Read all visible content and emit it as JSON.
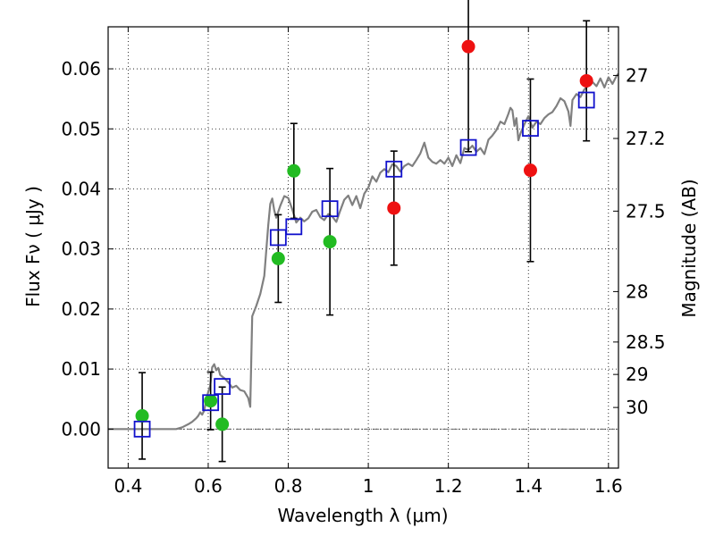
{
  "chart_data": {
    "type": "scatter",
    "xlabel": "Wavelength  λ (μm)",
    "ylabel_left": "Flux  Fν  ( μJy )",
    "ylabel_right": "Magnitude (AB)",
    "xlim": [
      0.35,
      1.625
    ],
    "ylim": [
      -0.0065,
      0.067
    ],
    "grid": true,
    "x_ticks": [
      {
        "value": 0.4,
        "label": "0.4"
      },
      {
        "value": 0.6,
        "label": "0.6"
      },
      {
        "value": 0.8,
        "label": "0.8"
      },
      {
        "value": 1.0,
        "label": "1"
      },
      {
        "value": 1.2,
        "label": "1.2"
      },
      {
        "value": 1.4,
        "label": "1.4"
      },
      {
        "value": 1.6,
        "label": "1.6"
      }
    ],
    "y_ticks": [
      {
        "value": 0.0,
        "label": "0.00"
      },
      {
        "value": 0.01,
        "label": "0.01"
      },
      {
        "value": 0.02,
        "label": "0.02"
      },
      {
        "value": 0.03,
        "label": "0.03"
      },
      {
        "value": 0.04,
        "label": "0.04"
      },
      {
        "value": 0.05,
        "label": "0.05"
      },
      {
        "value": 0.06,
        "label": "0.06"
      }
    ],
    "right_ticks": [
      {
        "label": "27",
        "flux": 0.0589
      },
      {
        "label": "27.2",
        "flux": 0.0484
      },
      {
        "label": "27.5",
        "flux": 0.0363
      },
      {
        "label": "28",
        "flux": 0.0229
      },
      {
        "label": "28.5",
        "flux": 0.0145
      },
      {
        "label": "29",
        "flux": 0.0091
      },
      {
        "label": "30",
        "flux": 0.0036
      }
    ],
    "zero_line": 0.0,
    "model_spectrum": {
      "color": "#808080",
      "points": [
        [
          0.35,
          0.0
        ],
        [
          0.52,
          0.0
        ],
        [
          0.535,
          0.0003
        ],
        [
          0.55,
          0.0008
        ],
        [
          0.56,
          0.0012
        ],
        [
          0.57,
          0.0018
        ],
        [
          0.575,
          0.0022
        ],
        [
          0.58,
          0.0028
        ],
        [
          0.585,
          0.0024
        ],
        [
          0.59,
          0.0031
        ],
        [
          0.595,
          0.0048
        ],
        [
          0.6,
          0.0062
        ],
        [
          0.605,
          0.0072
        ],
        [
          0.61,
          0.0103
        ],
        [
          0.615,
          0.0108
        ],
        [
          0.62,
          0.0098
        ],
        [
          0.625,
          0.0102
        ],
        [
          0.63,
          0.009
        ],
        [
          0.64,
          0.0085
        ],
        [
          0.65,
          0.0078
        ],
        [
          0.66,
          0.0069
        ],
        [
          0.67,
          0.0072
        ],
        [
          0.68,
          0.0065
        ],
        [
          0.69,
          0.0063
        ],
        [
          0.7,
          0.0052
        ],
        [
          0.705,
          0.0037
        ],
        [
          0.71,
          0.0188
        ],
        [
          0.72,
          0.0205
        ],
        [
          0.73,
          0.0225
        ],
        [
          0.74,
          0.0255
        ],
        [
          0.75,
          0.0339
        ],
        [
          0.755,
          0.0375
        ],
        [
          0.76,
          0.0384
        ],
        [
          0.765,
          0.0364
        ],
        [
          0.77,
          0.0352
        ],
        [
          0.78,
          0.0372
        ],
        [
          0.79,
          0.0388
        ],
        [
          0.8,
          0.0385
        ],
        [
          0.81,
          0.0366
        ],
        [
          0.82,
          0.0344
        ],
        [
          0.83,
          0.0352
        ],
        [
          0.84,
          0.0346
        ],
        [
          0.85,
          0.0351
        ],
        [
          0.86,
          0.0362
        ],
        [
          0.87,
          0.0365
        ],
        [
          0.88,
          0.0353
        ],
        [
          0.89,
          0.0348
        ],
        [
          0.9,
          0.0358
        ],
        [
          0.91,
          0.0354
        ],
        [
          0.92,
          0.0345
        ],
        [
          0.93,
          0.0364
        ],
        [
          0.94,
          0.0382
        ],
        [
          0.95,
          0.0389
        ],
        [
          0.96,
          0.0373
        ],
        [
          0.97,
          0.0388
        ],
        [
          0.98,
          0.0368
        ],
        [
          0.99,
          0.0392
        ],
        [
          1.0,
          0.0402
        ],
        [
          1.01,
          0.0421
        ],
        [
          1.02,
          0.0412
        ],
        [
          1.03,
          0.0427
        ],
        [
          1.04,
          0.0433
        ],
        [
          1.05,
          0.0428
        ],
        [
          1.06,
          0.0441
        ],
        [
          1.07,
          0.0438
        ],
        [
          1.08,
          0.0429
        ],
        [
          1.09,
          0.0438
        ],
        [
          1.1,
          0.0442
        ],
        [
          1.11,
          0.0438
        ],
        [
          1.12,
          0.0448
        ],
        [
          1.13,
          0.0459
        ],
        [
          1.14,
          0.0477
        ],
        [
          1.15,
          0.0452
        ],
        [
          1.16,
          0.0445
        ],
        [
          1.17,
          0.0442
        ],
        [
          1.18,
          0.0448
        ],
        [
          1.19,
          0.0442
        ],
        [
          1.2,
          0.0452
        ],
        [
          1.21,
          0.0438
        ],
        [
          1.22,
          0.0456
        ],
        [
          1.23,
          0.0443
        ],
        [
          1.24,
          0.0468
        ],
        [
          1.25,
          0.0465
        ],
        [
          1.26,
          0.0472
        ],
        [
          1.27,
          0.0462
        ],
        [
          1.28,
          0.0468
        ],
        [
          1.29,
          0.0458
        ],
        [
          1.3,
          0.0482
        ],
        [
          1.31,
          0.0489
        ],
        [
          1.32,
          0.0498
        ],
        [
          1.33,
          0.0512
        ],
        [
          1.34,
          0.0508
        ],
        [
          1.35,
          0.0525
        ],
        [
          1.355,
          0.0535
        ],
        [
          1.36,
          0.0531
        ],
        [
          1.365,
          0.0505
        ],
        [
          1.37,
          0.0518
        ],
        [
          1.375,
          0.0481
        ],
        [
          1.38,
          0.0492
        ],
        [
          1.39,
          0.0508
        ],
        [
          1.4,
          0.0521
        ],
        [
          1.41,
          0.0502
        ],
        [
          1.42,
          0.0512
        ],
        [
          1.43,
          0.0508
        ],
        [
          1.44,
          0.0518
        ],
        [
          1.45,
          0.0524
        ],
        [
          1.46,
          0.0528
        ],
        [
          1.47,
          0.0538
        ],
        [
          1.48,
          0.0551
        ],
        [
          1.49,
          0.0546
        ],
        [
          1.5,
          0.0529
        ],
        [
          1.505,
          0.0505
        ],
        [
          1.51,
          0.0548
        ],
        [
          1.52,
          0.0558
        ],
        [
          1.53,
          0.0553
        ],
        [
          1.54,
          0.0566
        ],
        [
          1.55,
          0.0572
        ],
        [
          1.56,
          0.0578
        ],
        [
          1.57,
          0.0571
        ],
        [
          1.58,
          0.0584
        ],
        [
          1.59,
          0.0569
        ],
        [
          1.6,
          0.0586
        ],
        [
          1.61,
          0.0575
        ],
        [
          1.62,
          0.0588
        ],
        [
          1.625,
          0.0592
        ]
      ]
    },
    "series": [
      {
        "marker": "filled-circle",
        "color": "#22bb22",
        "points": [
          {
            "x": 0.435,
            "y": 0.0022,
            "err": 0.0072
          },
          {
            "x": 0.606,
            "y": 0.0047,
            "err": 0.0048
          },
          {
            "x": 0.635,
            "y": 0.0008,
            "err": 0.0062
          },
          {
            "x": 0.775,
            "y": 0.0284,
            "err": 0.0073
          },
          {
            "x": 0.814,
            "y": 0.043,
            "err": 0.0079
          },
          {
            "x": 0.904,
            "y": 0.0312,
            "err": 0.0122
          }
        ]
      },
      {
        "marker": "filled-circle",
        "color": "#ee1111",
        "points": [
          {
            "x": 1.064,
            "y": 0.0368,
            "err": 0.0095
          },
          {
            "x": 1.25,
            "y": 0.0637,
            "err": 0.0175
          },
          {
            "x": 1.405,
            "y": 0.0431,
            "err": 0.0152
          },
          {
            "x": 1.545,
            "y": 0.058,
            "err": 0.01
          }
        ]
      },
      {
        "marker": "open-square",
        "color": "#1111cc",
        "points": [
          {
            "x": 0.435,
            "y": 0.0
          },
          {
            "x": 0.606,
            "y": 0.0044
          },
          {
            "x": 0.635,
            "y": 0.0071
          },
          {
            "x": 0.775,
            "y": 0.0319
          },
          {
            "x": 0.814,
            "y": 0.0337
          },
          {
            "x": 0.904,
            "y": 0.0367
          },
          {
            "x": 1.064,
            "y": 0.0433
          },
          {
            "x": 1.25,
            "y": 0.0469
          },
          {
            "x": 1.405,
            "y": 0.0501
          },
          {
            "x": 1.545,
            "y": 0.0548
          }
        ]
      }
    ]
  }
}
